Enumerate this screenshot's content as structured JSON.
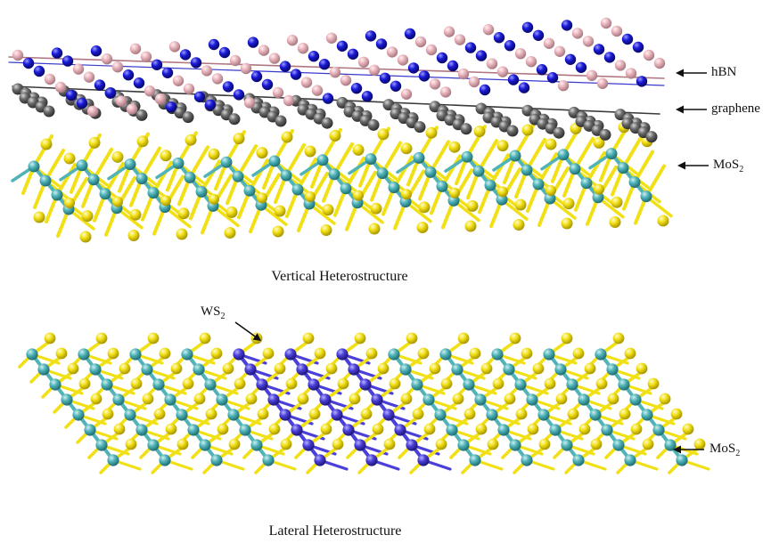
{
  "vertical": {
    "caption": "Vertical Heterostructure",
    "layers": [
      {
        "label": "hBN"
      },
      {
        "label": "graphene"
      },
      {
        "label": "MoS",
        "sub": "2"
      }
    ]
  },
  "lateral": {
    "caption": "Lateral Heterostructure",
    "ws2": {
      "label": "WS",
      "sub": "2"
    },
    "mos2": {
      "label": "MoS",
      "sub": "2"
    }
  },
  "colors": {
    "boron": "#e8b4bc",
    "nitrogen": "#1a1ad6",
    "carbon": "#6a6a6a",
    "sulfur": "#f2e016",
    "molybdenum": "#4fb3b8",
    "tungsten": "#4a3fd8"
  }
}
